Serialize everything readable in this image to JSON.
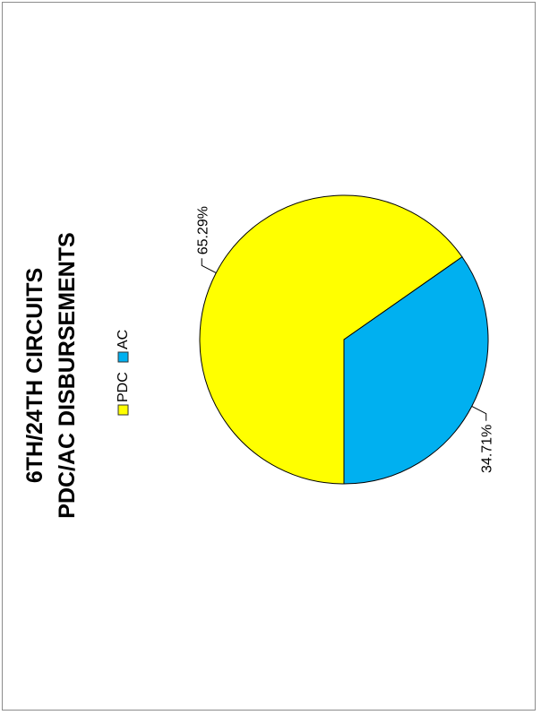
{
  "chart_data": {
    "type": "pie",
    "title_line1": "6TH/24TH CIRCUITS",
    "title_line2": "PDC/AC DISBURSEMENTS",
    "legend_position": "top",
    "series": [
      {
        "name": "PDC",
        "value": 65.29,
        "label": "65.29%",
        "color": "#ffff00"
      },
      {
        "name": "AC",
        "value": 34.71,
        "label": "34.71%",
        "color": "#00b0f0"
      }
    ]
  }
}
